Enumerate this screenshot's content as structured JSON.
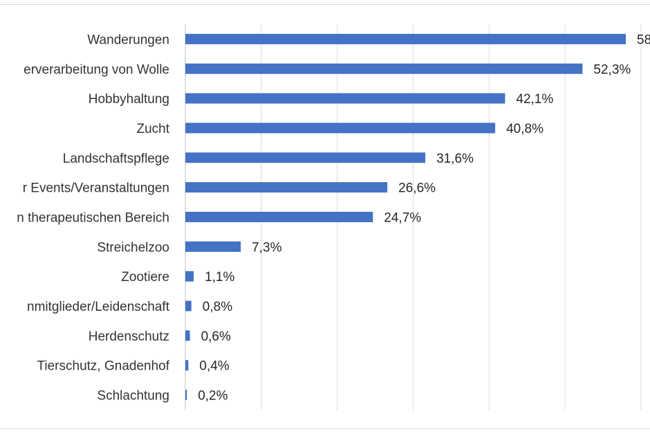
{
  "chart_data": {
    "type": "bar",
    "orientation": "horizontal",
    "categories": [
      "Wanderungen",
      "erverarbeitung von Wolle",
      "Hobbyhaltung",
      "Zucht",
      "Landschaftspflege",
      "r Events/Veranstaltungen",
      "n therapeutischen Bereich",
      "Streichelzoo",
      "Zootiere",
      "nmitglieder/Leidenschaft",
      "Herdenschutz",
      "Tierschutz, Gnadenhof",
      "Schlachtung"
    ],
    "values": [
      58,
      52.3,
      42.1,
      40.8,
      31.6,
      26.6,
      24.7,
      7.3,
      1.1,
      0.8,
      0.6,
      0.4,
      0.2
    ],
    "value_labels": [
      "58",
      "52,3%",
      "42,1%",
      "40,8%",
      "31,6%",
      "26,6%",
      "24,7%",
      "7,3%",
      "1,1%",
      "0,8%",
      "0,6%",
      "0,4%",
      "0,2%"
    ],
    "xlim": [
      0,
      60
    ],
    "grid": true,
    "bar_color": "#4472c4",
    "gridline_color": "#d9d9d9"
  }
}
